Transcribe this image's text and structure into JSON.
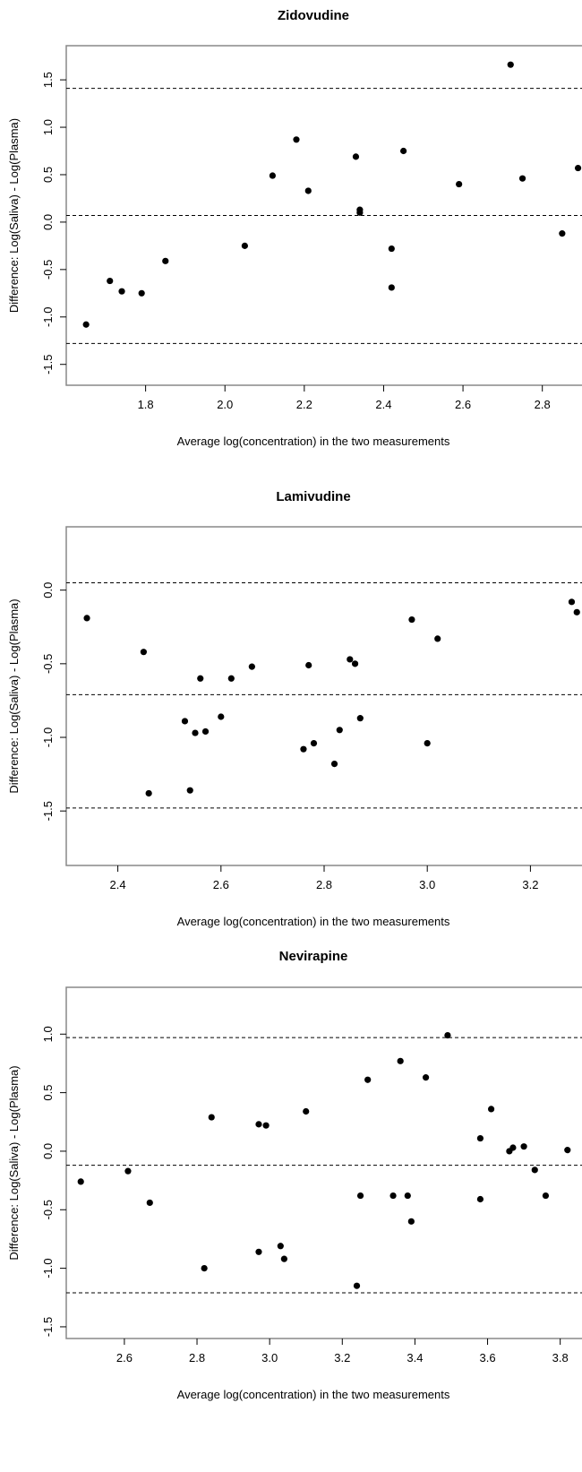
{
  "chart_data": [
    {
      "type": "scatter",
      "title": "Zidovudine",
      "xlabel": "Average log(concentration) in the two measurements",
      "ylabel": "Difference: Log(Saliva) - Log(Plasma)",
      "xlim": [
        1.6,
        2.9
      ],
      "ylim": [
        -1.72,
        1.86
      ],
      "xticks": [
        "1.8",
        "2.0",
        "2.2",
        "2.4",
        "2.6",
        "2.8"
      ],
      "yticks": [
        "-1.5",
        "-1.0",
        "-0.5",
        "0.0",
        "0.5",
        "1.0",
        "1.5"
      ],
      "reference_lines": [
        1.41,
        0.07,
        -1.28
      ],
      "points": [
        [
          1.65,
          -1.08
        ],
        [
          1.71,
          -0.62
        ],
        [
          1.74,
          -0.73
        ],
        [
          1.79,
          -0.75
        ],
        [
          1.85,
          -0.41
        ],
        [
          2.05,
          -0.25
        ],
        [
          2.12,
          0.49
        ],
        [
          2.18,
          0.87
        ],
        [
          2.21,
          0.33
        ],
        [
          2.33,
          0.69
        ],
        [
          2.34,
          0.1
        ],
        [
          2.34,
          0.13
        ],
        [
          2.42,
          -0.28
        ],
        [
          2.42,
          -0.69
        ],
        [
          2.45,
          0.75
        ],
        [
          2.59,
          0.4
        ],
        [
          2.72,
          1.66
        ],
        [
          2.75,
          0.46
        ],
        [
          2.85,
          -0.12
        ],
        [
          2.89,
          0.57
        ]
      ]
    },
    {
      "type": "scatter",
      "title": "Lamivudine",
      "xlabel": "Average log(concentration) in the two measurements",
      "ylabel": "Difference: Log(Saliva) - Log(Plasma)",
      "xlim": [
        2.3,
        3.3
      ],
      "ylim": [
        -1.87,
        0.43
      ],
      "xticks": [
        "2.4",
        "2.6",
        "2.8",
        "3.0",
        "3.2"
      ],
      "yticks": [
        "-1.5",
        "-1.0",
        "-0.5",
        "0.0"
      ],
      "reference_lines": [
        0.05,
        -0.71,
        -1.48
      ],
      "points": [
        [
          2.34,
          -0.19
        ],
        [
          2.45,
          -0.42
        ],
        [
          2.46,
          -1.38
        ],
        [
          2.53,
          -0.89
        ],
        [
          2.54,
          -1.36
        ],
        [
          2.55,
          -0.97
        ],
        [
          2.56,
          -0.6
        ],
        [
          2.57,
          -0.96
        ],
        [
          2.6,
          -0.86
        ],
        [
          2.62,
          -0.6
        ],
        [
          2.66,
          -0.52
        ],
        [
          2.76,
          -1.08
        ],
        [
          2.77,
          -0.51
        ],
        [
          2.78,
          -1.04
        ],
        [
          2.82,
          -1.18
        ],
        [
          2.83,
          -0.95
        ],
        [
          2.85,
          -0.47
        ],
        [
          2.86,
          -0.5
        ],
        [
          2.87,
          -0.87
        ],
        [
          2.97,
          -0.2
        ],
        [
          3.0,
          -1.04
        ],
        [
          3.02,
          -0.33
        ],
        [
          3.28,
          -0.08
        ],
        [
          3.29,
          -0.15
        ]
      ]
    },
    {
      "type": "scatter",
      "title": "Nevirapine",
      "xlabel": "Average log(concentration) in the two measurements",
      "ylabel": "Difference: Log(Saliva) - Log(Plasma)",
      "xlim": [
        2.44,
        3.86
      ],
      "ylim": [
        -1.6,
        1.4
      ],
      "xticks": [
        "2.6",
        "2.8",
        "3.0",
        "3.2",
        "3.4",
        "3.6",
        "3.8"
      ],
      "yticks": [
        "-1.5",
        "-1.0",
        "-0.5",
        "0.0",
        "0.5",
        "1.0"
      ],
      "reference_lines": [
        0.97,
        -0.12,
        -1.21
      ],
      "points": [
        [
          2.48,
          -0.26
        ],
        [
          2.61,
          -0.17
        ],
        [
          2.67,
          -0.44
        ],
        [
          2.82,
          -1.0
        ],
        [
          2.84,
          0.29
        ],
        [
          2.97,
          0.23
        ],
        [
          2.97,
          -0.86
        ],
        [
          2.99,
          0.22
        ],
        [
          3.03,
          -0.81
        ],
        [
          3.04,
          -0.92
        ],
        [
          3.1,
          0.34
        ],
        [
          3.24,
          -1.15
        ],
        [
          3.25,
          -0.38
        ],
        [
          3.27,
          0.61
        ],
        [
          3.34,
          -0.38
        ],
        [
          3.36,
          0.77
        ],
        [
          3.38,
          -0.38
        ],
        [
          3.39,
          -0.6
        ],
        [
          3.43,
          0.63
        ],
        [
          3.49,
          0.99
        ],
        [
          3.58,
          -0.41
        ],
        [
          3.58,
          0.11
        ],
        [
          3.61,
          0.36
        ],
        [
          3.66,
          0.0
        ],
        [
          3.67,
          0.03
        ],
        [
          3.7,
          0.04
        ],
        [
          3.73,
          -0.16
        ],
        [
          3.76,
          -0.38
        ],
        [
          3.82,
          0.01
        ]
      ]
    }
  ]
}
